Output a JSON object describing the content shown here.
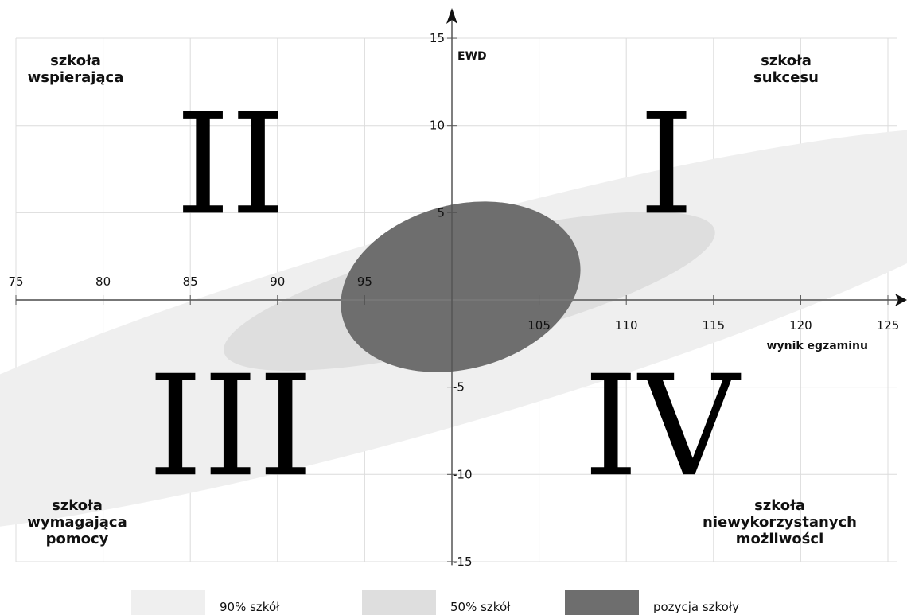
{
  "chart_data": {
    "type": "scatter",
    "x_axis": {
      "label": "wynik egzaminu",
      "ticks": [
        "75",
        "80",
        "85",
        "90",
        "95",
        "105",
        "110",
        "115",
        "120",
        "125"
      ],
      "range": [
        75,
        125
      ]
    },
    "y_axis": {
      "label": "EWD",
      "ticks": [
        "15",
        "10",
        "5",
        "-5",
        "-10",
        "-15"
      ],
      "range": [
        -15,
        15
      ]
    },
    "grid": true,
    "quadrants": [
      {
        "numeral": "I",
        "label_lines": [
          "szkoła",
          "sukcesu"
        ]
      },
      {
        "numeral": "II",
        "label_lines": [
          "szkoła",
          "wspierająca"
        ]
      },
      {
        "numeral": "III",
        "label_lines": [
          "szkoła",
          "wymagająca",
          "pomocy"
        ]
      },
      {
        "numeral": "IV",
        "label_lines": [
          "szkoła",
          "niewykorzystanych",
          "możliwości"
        ]
      }
    ],
    "ellipses": [
      {
        "name": "90% szkół",
        "cx": 98.5,
        "cy": -1.8,
        "rx": 37.5,
        "ry": 5.7,
        "angle_deg": -16,
        "color": "#efefef"
      },
      {
        "name": "50% szkół",
        "cx": 101,
        "cy": 0.5,
        "rx": 14.5,
        "ry": 3.0,
        "angle_deg": -14,
        "color": "#dedede"
      },
      {
        "name": "pozycja szkoły",
        "cx": 100.5,
        "cy": 0.75,
        "rx": 7.0,
        "ry": 4.7,
        "angle_deg": -15,
        "color": "#6e6e6e"
      }
    ],
    "legend": {
      "placement": "bottom",
      "items": [
        {
          "label": "90% szkół",
          "color": "#efefef"
        },
        {
          "label": "50% szkół",
          "color": "#dedede"
        },
        {
          "label": "pozycja szkoły",
          "color": "#6e6e6e"
        }
      ]
    }
  }
}
